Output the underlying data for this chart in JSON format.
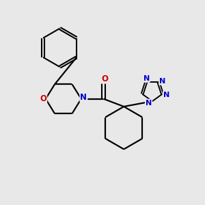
{
  "background_color": "#e8e8e8",
  "bond_color": "#000000",
  "nitrogen_color": "#0000cc",
  "oxygen_color": "#cc0000",
  "figsize": [
    3.0,
    3.0
  ],
  "dpi": 100,
  "xlim": [
    0,
    10
  ],
  "ylim": [
    0,
    10
  ]
}
